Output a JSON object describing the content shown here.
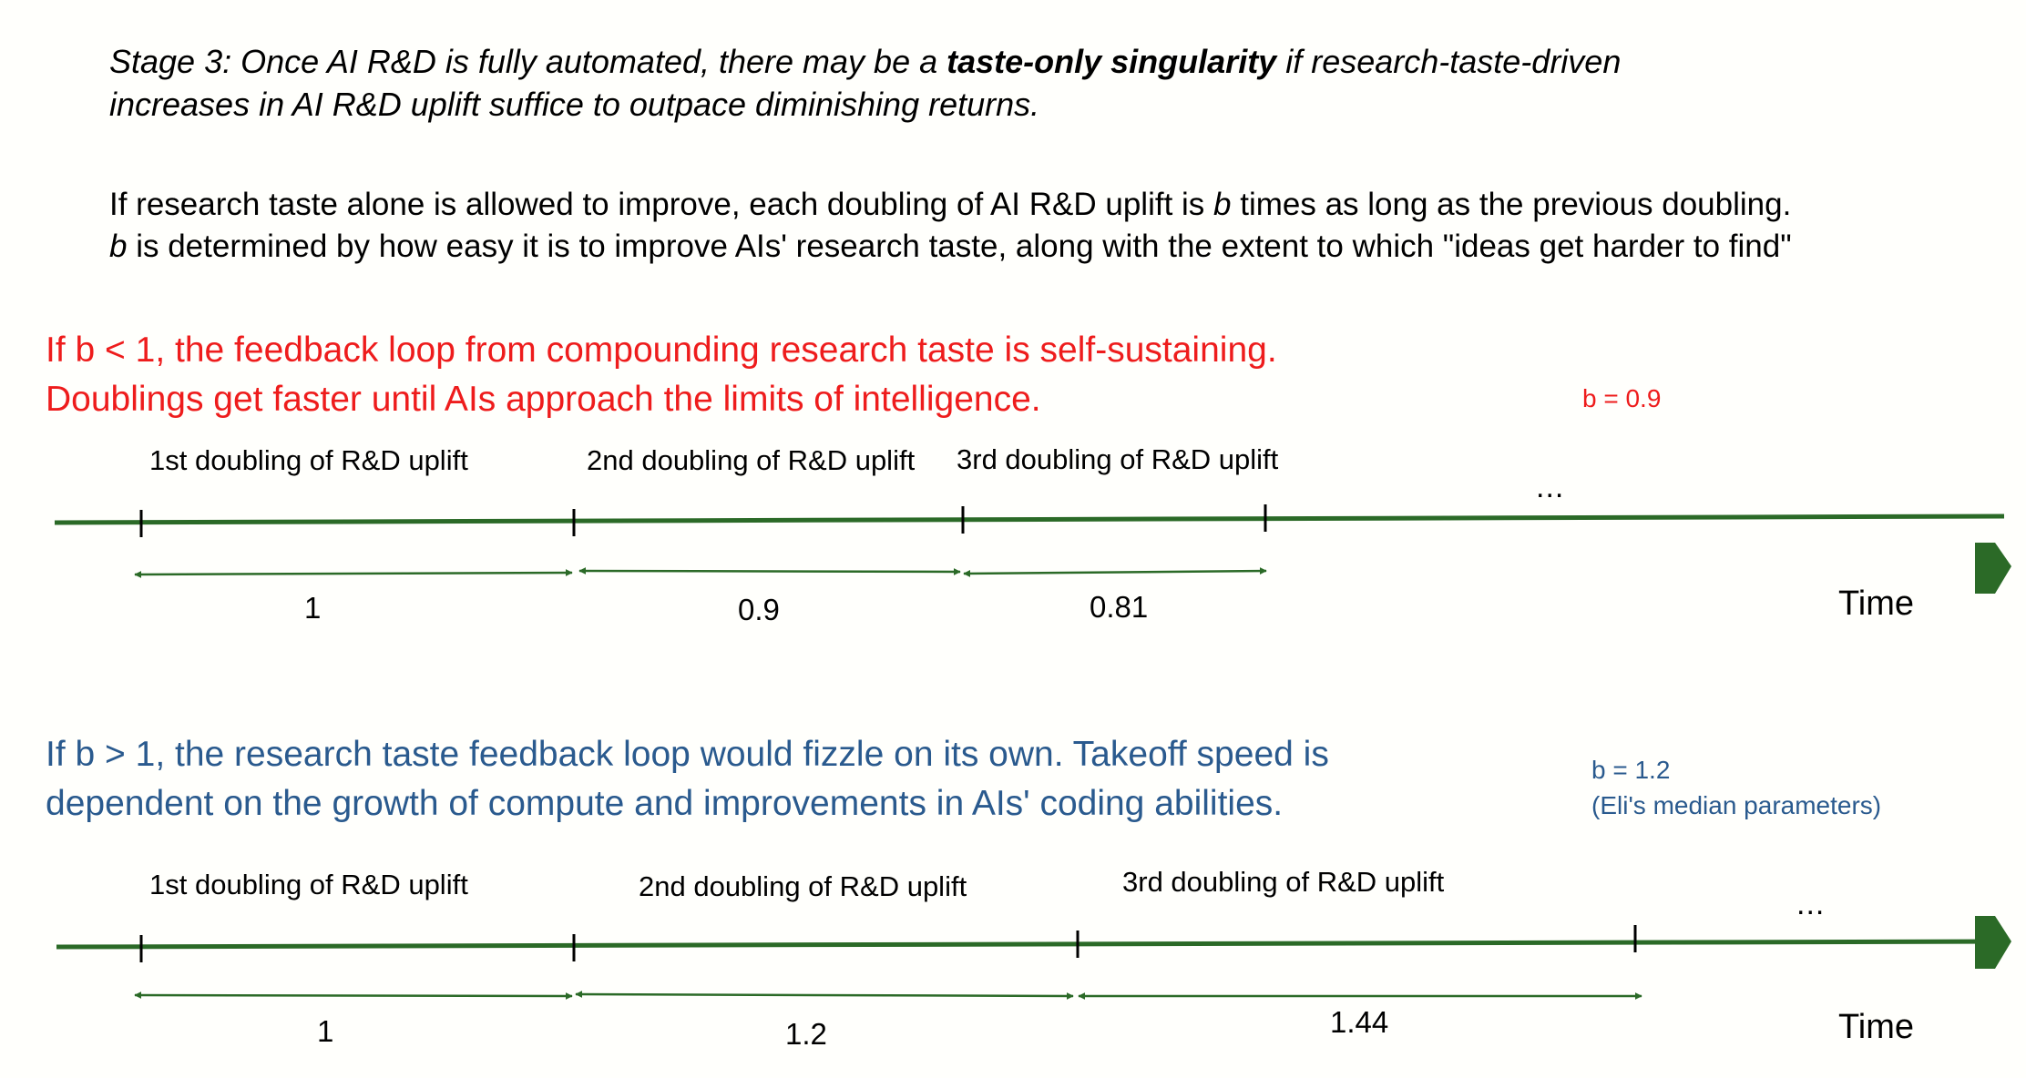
{
  "stage": {
    "prefix": "Stage 3: Once AI R&D is fully automated, there may be a ",
    "bold": "taste-only singularity",
    "suffix": " if research-taste-driven",
    "line2": "increases in AI R&D uplift suffice to outpace diminishing returns."
  },
  "description": {
    "line1_pre": "If research taste alone is allowed to improve, each doubling of AI R&D uplift is ",
    "line1_var": "b",
    "line1_post": " times as long as the previous doubling.",
    "line2_var": "b",
    "line2_post": " is determined by how easy it is to improve AIs' research taste, along with the extent to which \"ideas get harder to find\""
  },
  "scenario_fast": {
    "heading_line1": "If b < 1, the feedback loop from compounding research taste is self-sustaining.",
    "heading_line2": "Doublings get faster until AIs approach the limits of intelligence.",
    "b_label": "b = 0.9",
    "segments": [
      {
        "label": "1st doubling of R&D uplift",
        "duration": "1"
      },
      {
        "label": "2nd doubling of R&D uplift",
        "duration": "0.9"
      },
      {
        "label": "3rd doubling of R&D uplift",
        "duration": "0.81"
      }
    ],
    "ellipsis": "...",
    "axis_label": "Time"
  },
  "scenario_slow": {
    "heading_line1": "If b > 1, the research taste feedback loop would fizzle on its own. Takeoff speed is",
    "heading_line2": "dependent on the growth of compute and improvements in AIs' coding abilities.",
    "b_label": "b = 1.2",
    "b_note": "(Eli's median parameters)",
    "segments": [
      {
        "label": "1st doubling of R&D uplift",
        "duration": "1"
      },
      {
        "label": "2nd doubling of R&D uplift",
        "duration": "1.2"
      },
      {
        "label": "3rd doubling of R&D uplift",
        "duration": "1.44"
      }
    ],
    "ellipsis": "...",
    "axis_label": "Time"
  },
  "colors": {
    "timeline": "#2b6a27",
    "red_heading": "#ee1c1c",
    "blue_heading": "#2a5a8e"
  }
}
